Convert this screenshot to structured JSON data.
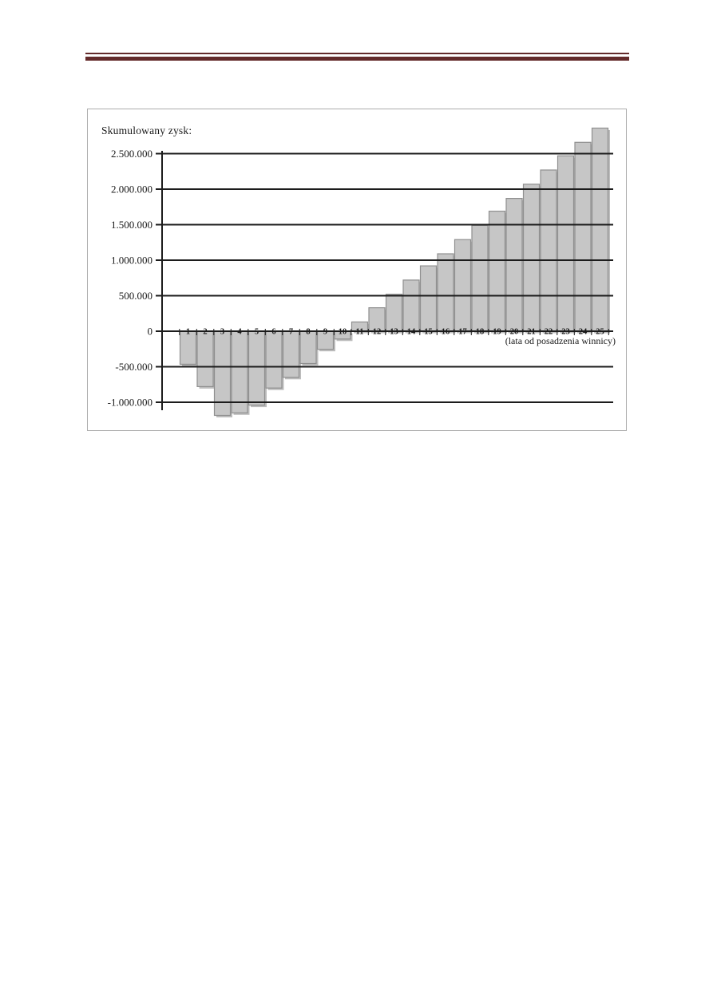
{
  "page": {
    "background_color": "#ffffff",
    "header_rule_color": "#632a2a"
  },
  "chart_data": {
    "type": "bar",
    "title": "Skumulowany zysk:",
    "xlabel": "(lata od posadzenia winnicy)",
    "ylabel": "",
    "categories": [
      1,
      2,
      3,
      4,
      5,
      6,
      7,
      8,
      9,
      10,
      11,
      12,
      13,
      14,
      15,
      16,
      17,
      18,
      19,
      20,
      21,
      22,
      23,
      24,
      25
    ],
    "values": [
      -465000,
      -780000,
      -1185000,
      -1150000,
      -1040000,
      -800000,
      -650000,
      -455000,
      -255000,
      -110000,
      130000,
      330000,
      520000,
      720000,
      920000,
      1090000,
      1290000,
      1490000,
      1690000,
      1870000,
      2070000,
      2270000,
      2470000,
      2660000,
      2860000
    ],
    "y_tick_values": [
      2500000,
      2000000,
      1500000,
      1000000,
      500000,
      0,
      -500000,
      -1000000
    ],
    "y_tick_labels": [
      "2.500.000",
      "2.000.000",
      "1.500.000",
      "1.000.000",
      "500.000",
      "0",
      "-500.000",
      "-1.000.000"
    ],
    "axis_range": [
      -1100000,
      2550000
    ],
    "grid": "horizontal",
    "legend": "none",
    "colors": {
      "bar_fill": "#c6c6c6",
      "bar_border": "#8f8f8f",
      "bar_shadow": "#bdbdbd",
      "grid_line": "#1c1c1c",
      "text": "#1a1a1a"
    }
  }
}
